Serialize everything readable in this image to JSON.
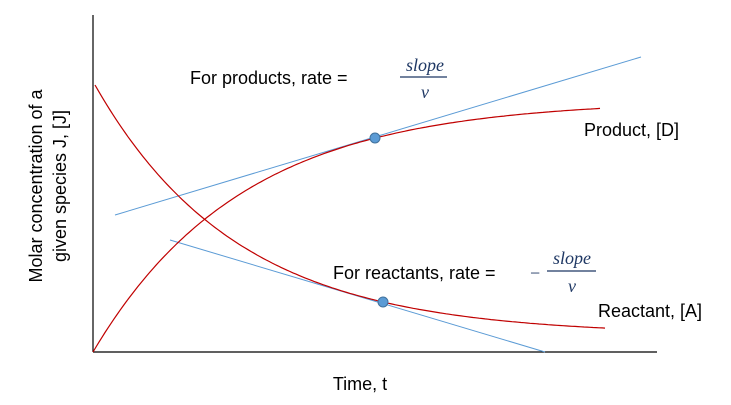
{
  "diagram": {
    "y_axis_label_line1": "Molar concentration of a",
    "y_axis_label_line2": "given species J, [J]",
    "x_axis_label": "Time, t",
    "product_label": "Product, [D]",
    "reactant_label": "Reactant, [A]",
    "product_rate_text": "For products, rate =",
    "reactant_rate_text": "For reactants, rate =",
    "minus_sign": "−",
    "fraction_numerator": "slope",
    "fraction_denominator": "ν",
    "colors": {
      "curve": "#c00000",
      "tangent": "#5b9bd5",
      "point": "#5b9bd5",
      "axis": "#000000"
    }
  }
}
